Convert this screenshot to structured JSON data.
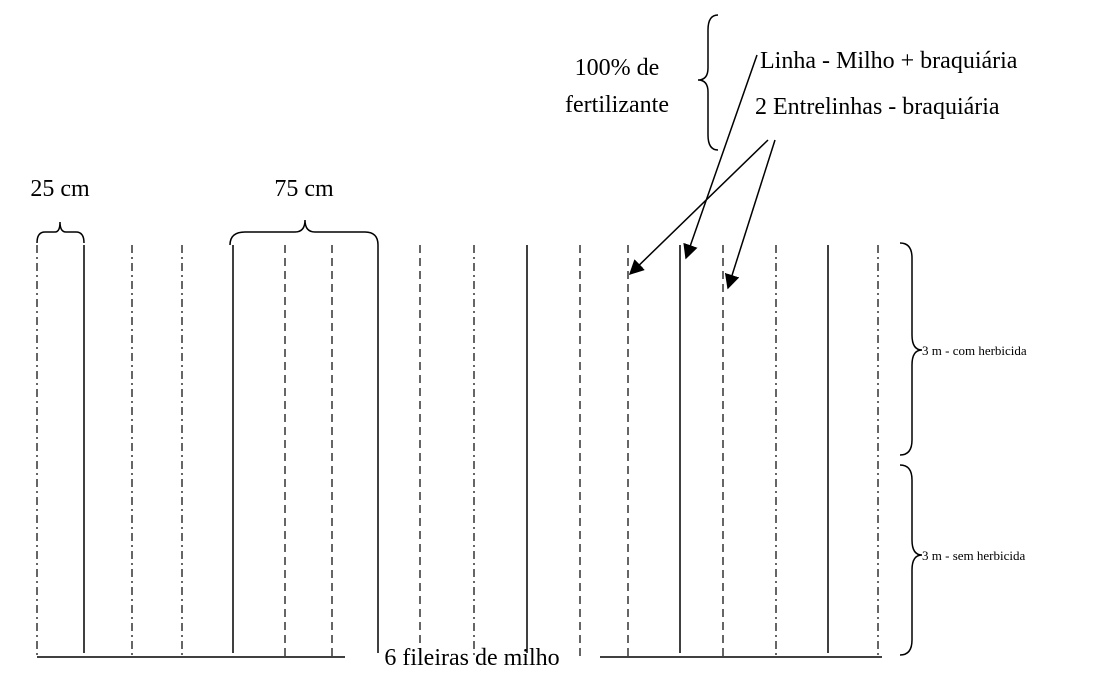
{
  "labels": {
    "fertilizer_line1": "100% de",
    "fertilizer_line2": "fertilizante",
    "row_label": "Linha - Milho + braquiária",
    "interrow_label": "2 Entrelinhas - braquiária",
    "spacing_small": "25 cm",
    "spacing_large": "75 cm",
    "upper_plot": "3 m - com herbicida",
    "lower_plot": "3 m - sem herbicida",
    "bottom": "6 fileiras de milho"
  }
}
